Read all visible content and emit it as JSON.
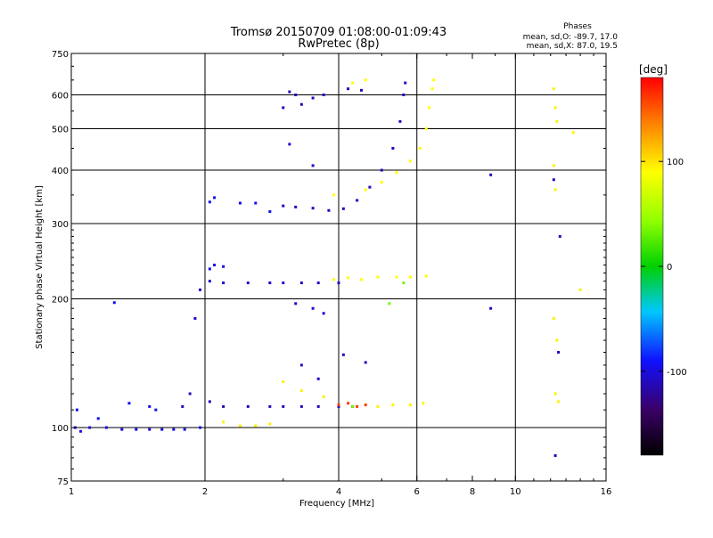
{
  "chart_data": {
    "type": "scatter",
    "title": "Tromsø 20150709 01:08:00-01:09:43",
    "subtitle": "RwPretec (8p)",
    "phase_stats": {
      "heading": "Phases",
      "line_o": "mean, sd,O: -89.7, 17.0",
      "line_x": "mean, sd,X:  87.0, 19.5"
    },
    "xlabel": "Frequency [MHz]",
    "ylabel": "Stationary phase Virtual Height [km]",
    "x_scale": "log2",
    "y_scale": "log",
    "xlim": [
      1,
      16
    ],
    "ylim": [
      75,
      750
    ],
    "xticks": [
      1,
      2,
      4,
      6,
      8,
      10,
      16
    ],
    "xtick_labels": [
      "1",
      "2",
      "4",
      "6",
      "8",
      "10",
      "16"
    ],
    "yticks": [
      75,
      100,
      200,
      300,
      400,
      500,
      600,
      750
    ],
    "ytick_labels": [
      "75",
      "100",
      "200",
      "300",
      "400",
      "500",
      "600",
      "750"
    ],
    "grid_x": [
      2,
      4,
      6,
      10
    ],
    "grid_y": [
      100,
      200,
      300,
      400,
      500,
      600
    ],
    "grid": true,
    "colorbar": {
      "label": "[deg]",
      "range": [
        -180,
        180
      ],
      "ticks": [
        -100,
        0,
        100
      ],
      "tick_labels": [
        "-100",
        "0",
        "100"
      ],
      "colormap": "rainbow"
    },
    "series": [
      {
        "phase": -100,
        "points": [
          [
            1.02,
            100
          ],
          [
            1.05,
            98
          ],
          [
            1.1,
            100
          ],
          [
            1.2,
            100
          ],
          [
            1.3,
            99
          ],
          [
            1.4,
            99
          ],
          [
            1.5,
            99
          ],
          [
            1.6,
            99
          ],
          [
            1.7,
            99
          ],
          [
            1.8,
            99
          ],
          [
            1.95,
            100
          ]
        ]
      },
      {
        "phase": -95,
        "points": [
          [
            1.03,
            110
          ],
          [
            1.15,
            105
          ],
          [
            1.25,
            196
          ],
          [
            1.35,
            114
          ],
          [
            1.5,
            112
          ],
          [
            1.55,
            110
          ]
        ]
      },
      {
        "phase": -110,
        "points": [
          [
            1.78,
            112
          ],
          [
            1.85,
            120
          ],
          [
            1.9,
            180
          ],
          [
            1.95,
            210
          ],
          [
            2.05,
            115
          ],
          [
            2.2,
            112
          ],
          [
            2.5,
            112
          ],
          [
            2.8,
            112
          ],
          [
            3.0,
            112
          ],
          [
            3.3,
            112
          ],
          [
            3.6,
            112
          ],
          [
            4.0,
            112
          ],
          [
            4.3,
            112
          ]
        ]
      },
      {
        "phase": -105,
        "points": [
          [
            2.05,
            220
          ],
          [
            2.2,
            218
          ],
          [
            2.5,
            218
          ],
          [
            2.8,
            218
          ],
          [
            3.0,
            218
          ],
          [
            3.3,
            218
          ],
          [
            3.6,
            218
          ],
          [
            4.0,
            218
          ]
        ]
      },
      {
        "phase": -95,
        "points": [
          [
            2.05,
            235
          ],
          [
            2.1,
            240
          ],
          [
            2.2,
            238
          ],
          [
            2.05,
            337
          ],
          [
            2.1,
            345
          ],
          [
            2.4,
            335
          ],
          [
            2.6,
            335
          ],
          [
            2.8,
            320
          ]
        ]
      },
      {
        "phase": -110,
        "points": [
          [
            3.0,
            330
          ],
          [
            3.2,
            328
          ],
          [
            3.5,
            326
          ],
          [
            3.8,
            322
          ],
          [
            4.1,
            325
          ],
          [
            4.4,
            340
          ],
          [
            4.7,
            365
          ],
          [
            5.0,
            400
          ],
          [
            5.3,
            450
          ],
          [
            5.5,
            520
          ],
          [
            5.6,
            600
          ],
          [
            5.65,
            640
          ]
        ]
      },
      {
        "phase": -110,
        "points": [
          [
            3.0,
            560
          ],
          [
            3.1,
            610
          ],
          [
            3.2,
            600
          ],
          [
            3.3,
            570
          ],
          [
            3.5,
            590
          ],
          [
            3.7,
            600
          ],
          [
            4.2,
            620
          ],
          [
            4.5,
            615
          ]
        ]
      },
      {
        "phase": -105,
        "points": [
          [
            3.2,
            195
          ],
          [
            3.5,
            190
          ],
          [
            3.7,
            185
          ],
          [
            3.3,
            140
          ],
          [
            3.6,
            130
          ],
          [
            4.1,
            148
          ],
          [
            4.6,
            142
          ],
          [
            3.1,
            460
          ],
          [
            3.5,
            410
          ]
        ]
      },
      {
        "phase": 95,
        "points": [
          [
            2.2,
            103
          ],
          [
            2.4,
            101
          ],
          [
            2.6,
            101
          ],
          [
            2.8,
            102
          ],
          [
            3.0,
            128
          ],
          [
            3.3,
            122
          ],
          [
            3.7,
            118
          ],
          [
            4.6,
            113
          ],
          [
            4.9,
            112
          ],
          [
            5.3,
            113
          ],
          [
            5.8,
            113
          ],
          [
            6.2,
            114
          ]
        ]
      },
      {
        "phase": 90,
        "points": [
          [
            3.9,
            222
          ],
          [
            4.2,
            224
          ],
          [
            4.5,
            222
          ],
          [
            4.9,
            225
          ],
          [
            5.4,
            225
          ],
          [
            5.8,
            225
          ],
          [
            6.3,
            226
          ]
        ]
      },
      {
        "phase": 90,
        "points": [
          [
            4.6,
            360
          ],
          [
            5.0,
            375
          ],
          [
            5.4,
            395
          ],
          [
            5.8,
            420
          ],
          [
            6.1,
            450
          ],
          [
            6.3,
            500
          ],
          [
            6.4,
            560
          ],
          [
            6.5,
            620
          ],
          [
            6.55,
            650
          ],
          [
            3.9,
            350
          ],
          [
            4.3,
            640
          ],
          [
            4.6,
            650
          ]
        ]
      },
      {
        "phase": 160,
        "points": [
          [
            4.0,
            113
          ],
          [
            4.2,
            114
          ],
          [
            4.4,
            112
          ],
          [
            4.6,
            113
          ]
        ]
      },
      {
        "phase": 35,
        "points": [
          [
            4.3,
            112
          ],
          [
            5.2,
            195
          ],
          [
            5.6,
            218
          ]
        ]
      },
      {
        "phase": 95,
        "points": [
          [
            12.2,
            620
          ],
          [
            12.3,
            560
          ],
          [
            12.4,
            520
          ],
          [
            12.2,
            410
          ],
          [
            12.3,
            360
          ],
          [
            12.2,
            180
          ],
          [
            12.4,
            160
          ],
          [
            12.3,
            120
          ],
          [
            12.5,
            115
          ],
          [
            13.5,
            490
          ],
          [
            14.0,
            210
          ]
        ]
      },
      {
        "phase": -110,
        "points": [
          [
            8.8,
            390
          ],
          [
            8.8,
            190
          ],
          [
            12.3,
            86
          ],
          [
            12.2,
            380
          ],
          [
            12.6,
            280
          ],
          [
            12.5,
            150
          ]
        ]
      }
    ]
  }
}
